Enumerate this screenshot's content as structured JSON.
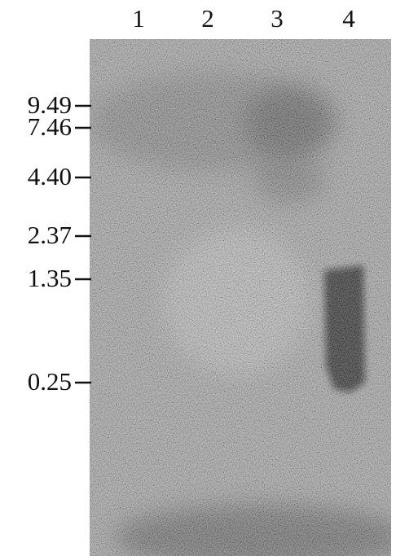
{
  "lanes": [
    "1",
    "2",
    "3",
    "4"
  ],
  "markers": [
    "9.49",
    "7.46",
    "4.40",
    "2.37",
    "1.35",
    "0.25"
  ]
}
